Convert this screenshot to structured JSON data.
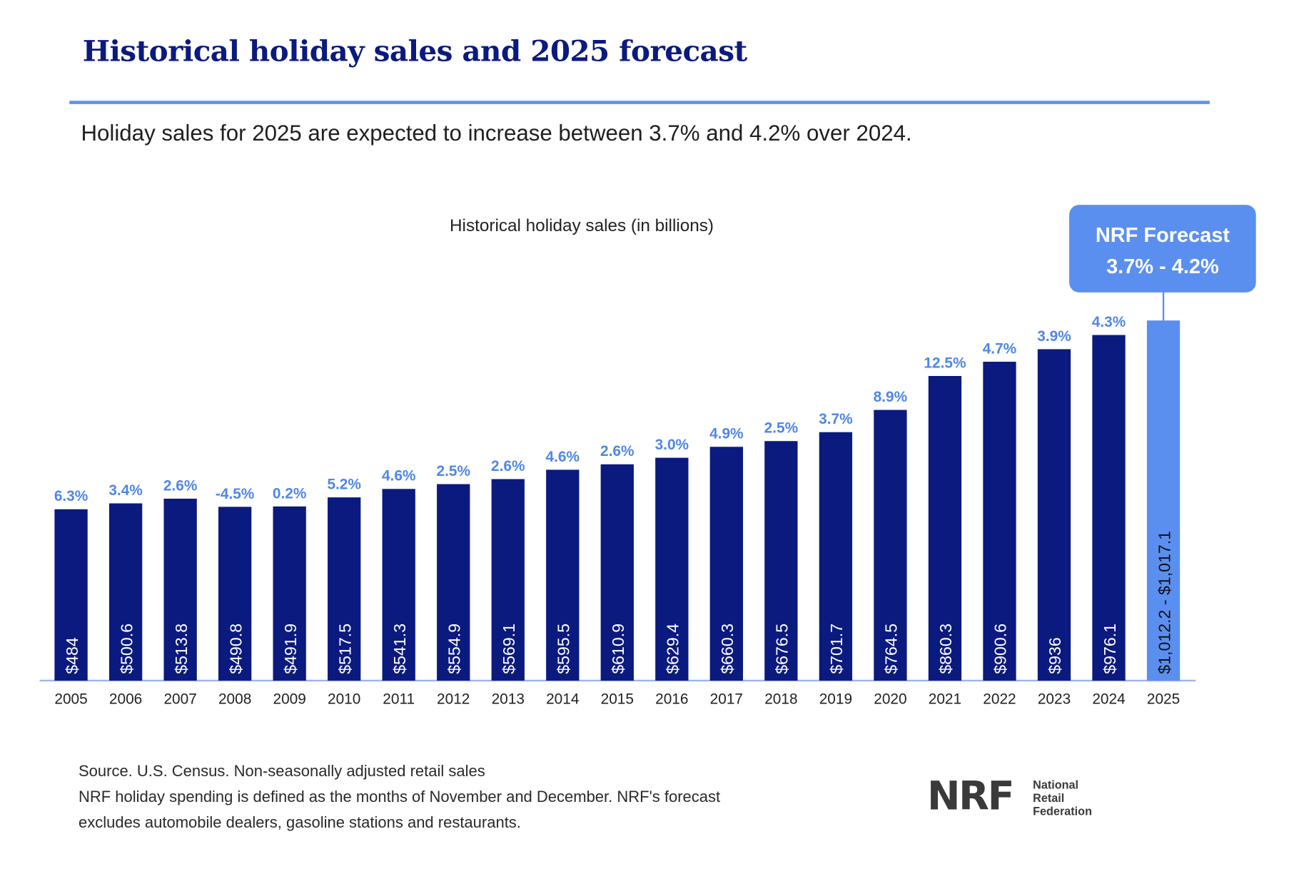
{
  "header": {
    "title": "Historical holiday sales and 2025 forecast",
    "subtitle": "Holiday sales for 2025 are expected to increase between 3.7% and 4.2% over 2024."
  },
  "callout": {
    "line1": "NRF Forecast",
    "line2": "3.7% - 4.2%"
  },
  "footer": {
    "line1": "Source. U.S. Census. Non-seasonally adjusted retail sales",
    "line2": "NRF holiday spending is defined as the months of November and December. NRF's forecast",
    "line3": "excludes automobile dealers, gasoline stations and restaurants."
  },
  "logo": {
    "mark": "NRF",
    "text_lines": [
      "National",
      "Retail",
      "Federation"
    ]
  },
  "colors": {
    "bar": "#0b1a7e",
    "forecast_bar": "#5b8fef",
    "growth_label": "#4f86e8",
    "axis": "#9cb6e6",
    "title": "#0b1a7e"
  },
  "chart_data": {
    "type": "bar",
    "title": "Historical holiday sales (in billions)",
    "xlabel": "",
    "ylabel": "",
    "categories": [
      "2005",
      "2006",
      "2007",
      "2008",
      "2009",
      "2010",
      "2011",
      "2012",
      "2013",
      "2014",
      "2015",
      "2016",
      "2017",
      "2018",
      "2019",
      "2020",
      "2021",
      "2022",
      "2023",
      "2024",
      "2025"
    ],
    "values": [
      484,
      500.6,
      513.8,
      490.8,
      491.9,
      517.5,
      541.3,
      554.9,
      569.1,
      595.5,
      610.9,
      629.4,
      660.3,
      676.5,
      701.7,
      764.5,
      860.3,
      900.6,
      936,
      976.1,
      1017.1
    ],
    "value_labels": [
      "$484",
      "$500.6",
      "$513.8",
      "$490.8",
      "$491.9",
      "$517.5",
      "$541.3",
      "$554.9",
      "$569.1",
      "$595.5",
      "$610.9",
      "$629.4",
      "$660.3",
      "$676.5",
      "$701.7",
      "$764.5",
      "$860.3",
      "$900.6",
      "$936",
      "$976.1",
      "$1,012.2 - $1,017.1"
    ],
    "growth_labels": [
      "6.3%",
      "3.4%",
      "2.6%",
      "-4.5%",
      "0.2%",
      "5.2%",
      "4.6%",
      "2.5%",
      "2.6%",
      "4.6%",
      "2.6%",
      "3.0%",
      "4.9%",
      "2.5%",
      "3.7%",
      "8.9%",
      "12.5%",
      "4.7%",
      "3.9%",
      "4.3%",
      ""
    ],
    "forecast_index": 20,
    "ylim": [
      0,
      1017.1
    ],
    "grid": false,
    "legend": "none"
  }
}
